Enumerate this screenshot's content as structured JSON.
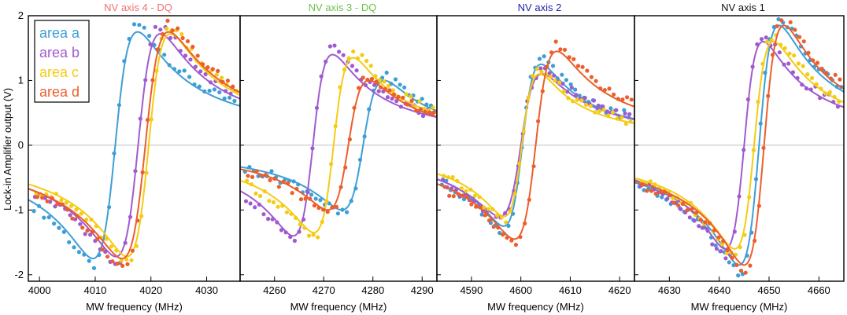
{
  "figure": {
    "ylabel": "Lock-in Amplifier output (V)",
    "xlabel": "MW frequency (MHz)"
  },
  "legend": {
    "entries": [
      {
        "label": "area a",
        "color": "#3d9ed6"
      },
      {
        "label": "area b",
        "color": "#a05ad0"
      },
      {
        "label": "area c",
        "color": "#f4cc12"
      },
      {
        "label": "area d",
        "color": "#ec5e2c"
      }
    ]
  },
  "chart_data": [
    {
      "type": "line",
      "title": "NV axis 4 - DQ",
      "title_color": "#f07070",
      "xlabel": "MW frequency (MHz)",
      "xlim": [
        3998,
        4036
      ],
      "ylim": [
        -2.1,
        2.0
      ],
      "xticks": [
        4000,
        4010,
        4020,
        4030
      ],
      "yticks": [
        2,
        1,
        0,
        -1,
        -2
      ],
      "series": [
        {
          "name": "area a",
          "center": 4013.6,
          "width": 4.0,
          "amp": 1.75,
          "offset": 0.0
        },
        {
          "name": "area b",
          "center": 4017.7,
          "width": 4.0,
          "amp": 1.72,
          "offset": 0.0
        },
        {
          "name": "area c",
          "center": 4019.6,
          "width": 3.9,
          "amp": 1.72,
          "offset": 0.0
        },
        {
          "name": "area d",
          "center": 4019.0,
          "width": 4.2,
          "amp": 1.75,
          "offset": 0.0
        }
      ]
    },
    {
      "type": "line",
      "title": "NV axis 3 - DQ",
      "title_color": "#6cc24a",
      "xlabel": "MW frequency (MHz)",
      "xlim": [
        4253,
        4293
      ],
      "ylim": [
        -2.1,
        2.0
      ],
      "xticks": [
        4260,
        4270,
        4280,
        4290
      ],
      "yticks": [
        2,
        1,
        0,
        -1,
        -2
      ],
      "series": [
        {
          "name": "area a",
          "center": 4278.0,
          "width": 4.3,
          "amp": 1.0,
          "offset": 0.0
        },
        {
          "name": "area b",
          "center": 4267.8,
          "width": 4.0,
          "amp": 1.4,
          "offset": 0.0
        },
        {
          "name": "area c",
          "center": 4272.0,
          "width": 4.0,
          "amp": 1.35,
          "offset": 0.0
        },
        {
          "name": "area d",
          "center": 4275.0,
          "width": 4.2,
          "amp": 1.0,
          "offset": 0.0
        }
      ]
    },
    {
      "type": "line",
      "title": "NV axis 2",
      "title_color": "#2222aa",
      "xlabel": "MW frequency (MHz)",
      "xlim": [
        4583,
        4623
      ],
      "ylim": [
        -2.1,
        2.0
      ],
      "xticks": [
        4590,
        4600,
        4610,
        4620
      ],
      "yticks": [
        2,
        1,
        0,
        -1,
        -2
      ],
      "series": [
        {
          "name": "area a",
          "center": 4600.3,
          "width": 3.8,
          "amp": 1.25,
          "offset": 0.0
        },
        {
          "name": "area b",
          "center": 4600.0,
          "width": 4.3,
          "amp": 1.1,
          "offset": 0.0
        },
        {
          "name": "area c",
          "center": 4600.2,
          "width": 3.6,
          "amp": 1.1,
          "offset": 0.0
        },
        {
          "name": "area d",
          "center": 4603.0,
          "width": 4.3,
          "amp": 1.45,
          "offset": 0.0
        }
      ]
    },
    {
      "type": "line",
      "title": "NV axis 1",
      "title_color": "#111111",
      "xlabel": "MW frequency (MHz)",
      "xlim": [
        4623,
        4665
      ],
      "ylim": [
        -2.1,
        2.0
      ],
      "xticks": [
        4630,
        4640,
        4650,
        4660
      ],
      "yticks": [
        2,
        1,
        0,
        -1,
        -2
      ],
      "series": [
        {
          "name": "area a",
          "center": 4648.0,
          "width": 4.0,
          "amp": 1.85,
          "offset": 0.0
        },
        {
          "name": "area b",
          "center": 4645.0,
          "width": 3.8,
          "amp": 1.6,
          "offset": 0.0
        },
        {
          "name": "area c",
          "center": 4647.0,
          "width": 3.9,
          "amp": 1.6,
          "offset": 0.0
        },
        {
          "name": "area d",
          "center": 4649.0,
          "width": 4.0,
          "amp": 1.85,
          "offset": 0.0
        }
      ]
    }
  ]
}
